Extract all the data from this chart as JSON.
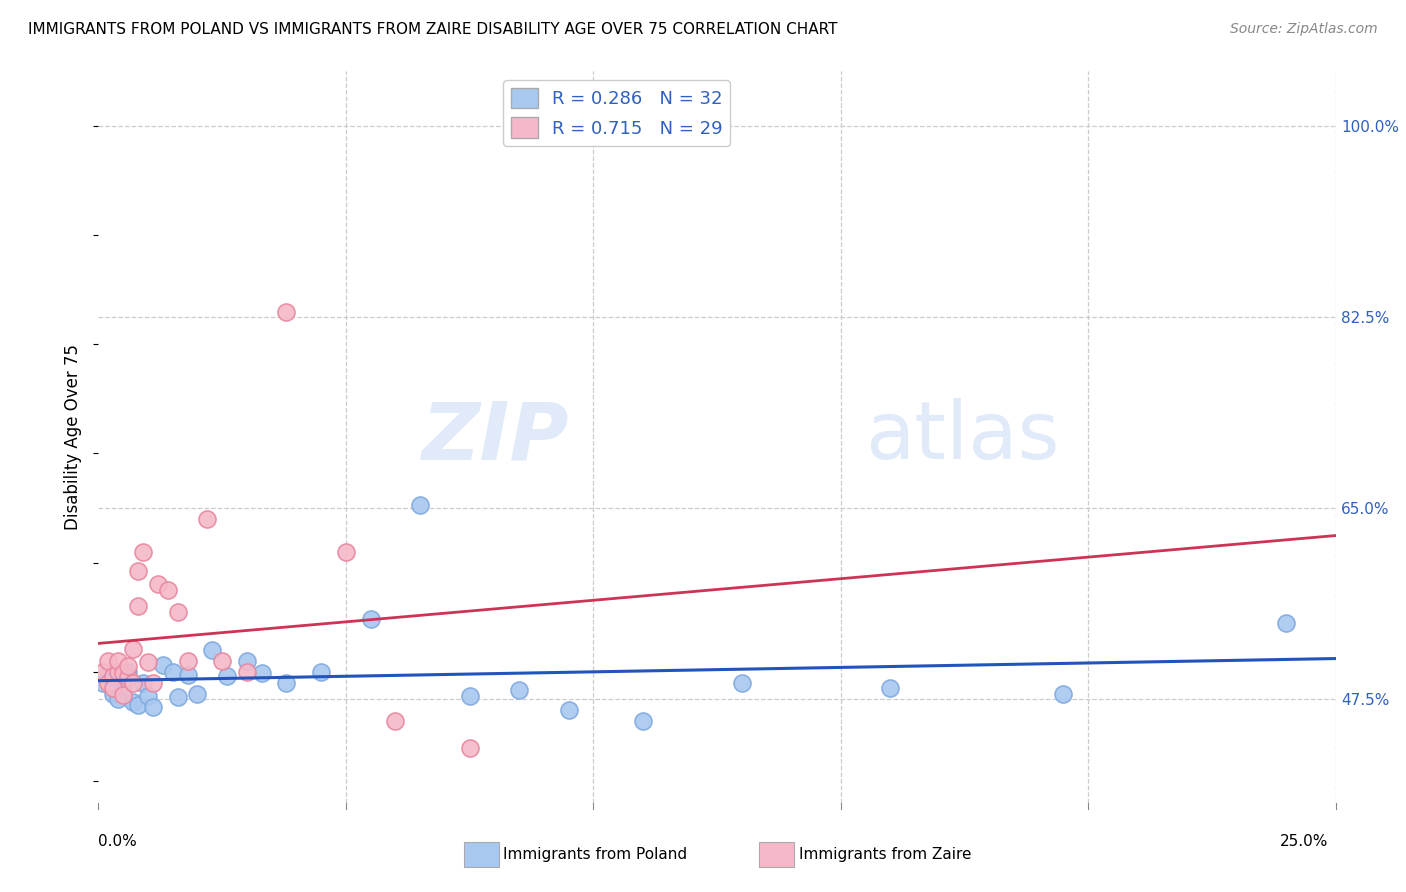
{
  "title": "IMMIGRANTS FROM POLAND VS IMMIGRANTS FROM ZAIRE DISABILITY AGE OVER 75 CORRELATION CHART",
  "source": "Source: ZipAtlas.com",
  "ylabel": "Disability Age Over 75",
  "y_ticks": [
    0.475,
    0.65,
    0.825,
    1.0
  ],
  "y_tick_labels": [
    "47.5%",
    "65.0%",
    "82.5%",
    "100.0%"
  ],
  "x_min": 0.0,
  "x_max": 0.25,
  "y_min": 0.38,
  "y_max": 1.05,
  "poland_color": "#a8c8f0",
  "poland_edge": "#80aade",
  "zaire_color": "#f5b8c8",
  "zaire_edge": "#e888a0",
  "poland_line_color": "#2255bb",
  "zaire_line_color": "#cc3355",
  "poland_R": 0.286,
  "poland_N": 32,
  "zaire_R": 0.715,
  "zaire_N": 29,
  "legend_label_poland": "Immigrants from Poland",
  "legend_label_zaire": "Immigrants from Zaire",
  "watermark_zip": "ZIP",
  "watermark_atlas": "atlas",
  "poland_x": [
    0.001,
    0.002,
    0.003,
    0.004,
    0.005,
    0.006,
    0.007,
    0.008,
    0.009,
    0.01,
    0.011,
    0.013,
    0.015,
    0.016,
    0.018,
    0.02,
    0.023,
    0.026,
    0.03,
    0.033,
    0.038,
    0.045,
    0.055,
    0.065,
    0.075,
    0.085,
    0.095,
    0.11,
    0.13,
    0.16,
    0.195,
    0.24
  ],
  "poland_y": [
    0.49,
    0.497,
    0.48,
    0.475,
    0.488,
    0.5,
    0.472,
    0.47,
    0.49,
    0.478,
    0.468,
    0.506,
    0.5,
    0.477,
    0.497,
    0.48,
    0.52,
    0.496,
    0.51,
    0.499,
    0.49,
    0.5,
    0.548,
    0.653,
    0.478,
    0.483,
    0.465,
    0.455,
    0.49,
    0.485,
    0.48,
    0.545
  ],
  "zaire_x": [
    0.001,
    0.002,
    0.002,
    0.003,
    0.003,
    0.004,
    0.004,
    0.005,
    0.005,
    0.006,
    0.006,
    0.007,
    0.007,
    0.008,
    0.008,
    0.009,
    0.01,
    0.011,
    0.012,
    0.014,
    0.016,
    0.018,
    0.022,
    0.025,
    0.03,
    0.038,
    0.05,
    0.06,
    0.075
  ],
  "zaire_y": [
    0.5,
    0.51,
    0.49,
    0.496,
    0.485,
    0.5,
    0.51,
    0.499,
    0.479,
    0.495,
    0.505,
    0.521,
    0.49,
    0.56,
    0.592,
    0.61,
    0.509,
    0.49,
    0.58,
    0.575,
    0.555,
    0.51,
    0.64,
    0.51,
    0.5,
    0.83,
    0.61,
    0.455,
    0.43
  ]
}
